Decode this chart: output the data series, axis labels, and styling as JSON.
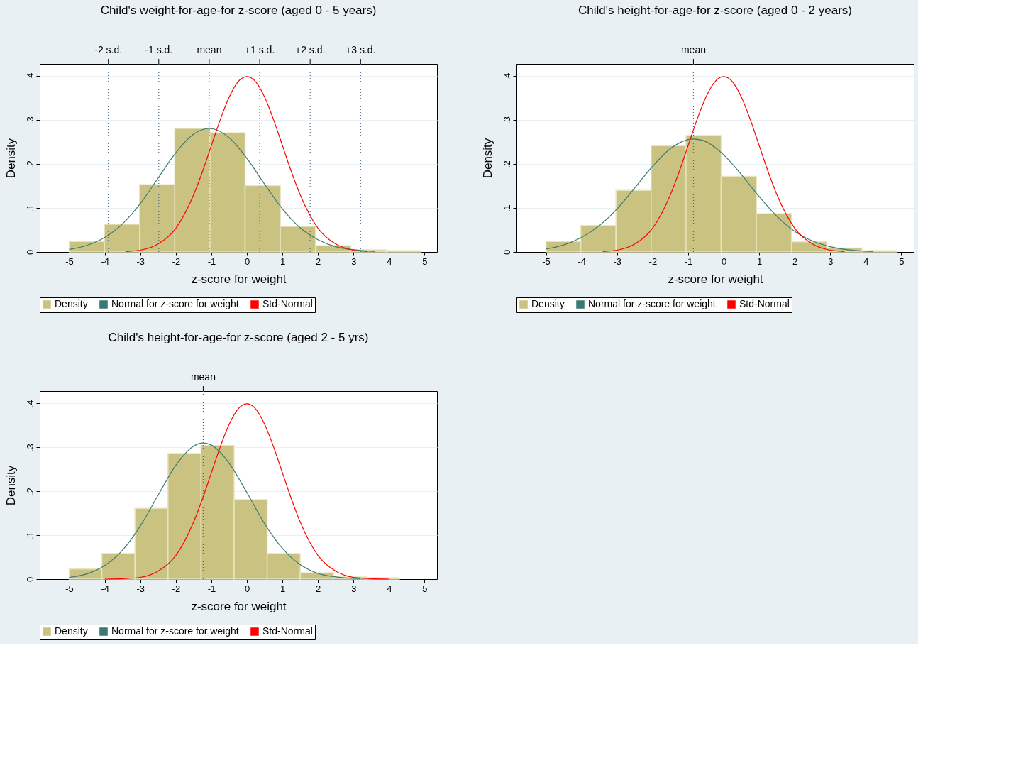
{
  "chart_data": [
    {
      "type": "histogram",
      "title": "Child's weight-for-age-for z-score (aged 0 - 5 years)",
      "xlabel": "z-score for weight",
      "ylabel": "Density",
      "xlim": [
        -5.83,
        5.35
      ],
      "ylim": [
        0,
        0.428
      ],
      "xticks": [
        -5,
        -4,
        -3,
        -2,
        -1,
        0,
        1,
        2,
        3,
        4,
        5
      ],
      "yticks": [
        {
          "value": 0,
          "label": "0"
        },
        {
          "value": 0.1,
          "label": ".1"
        },
        {
          "value": 0.2,
          "label": ".2"
        },
        {
          "value": 0.3,
          "label": ".3"
        },
        {
          "value": 0.4,
          "label": ".4"
        }
      ],
      "grid": "y",
      "legend": "bottom",
      "series": [
        {
          "name": "Density",
          "type": "histogram",
          "color": "#c9c280",
          "bins": [
            -5,
            -4.01,
            -3.02,
            -2.03,
            -1.04,
            -0.05,
            0.94,
            1.93,
            2.92,
            3.91,
            4.9
          ],
          "values": [
            0.024,
            0.063,
            0.153,
            0.281,
            0.271,
            0.151,
            0.058,
            0.014,
            0.005,
            0.003
          ]
        },
        {
          "name": "Normal for z-score for weight",
          "type": "line",
          "color": "#3b7a73",
          "x": [
            -5,
            -4.5,
            -4,
            -3.5,
            -3,
            -2.5,
            -2,
            -1.5,
            -1.06,
            -0.5,
            0,
            0.5,
            1,
            1.5,
            2,
            2.5,
            3,
            3.6
          ],
          "values": [
            0.006,
            0.015,
            0.033,
            0.064,
            0.11,
            0.168,
            0.226,
            0.268,
            0.281,
            0.26,
            0.213,
            0.154,
            0.098,
            0.055,
            0.028,
            0.012,
            0.005,
            0.001
          ]
        },
        {
          "name": "Std-Normal",
          "type": "line",
          "color": "#ff0000",
          "x": [
            -3.4,
            -3,
            -2.5,
            -2,
            -1.5,
            -1.25,
            -1,
            -0.75,
            -0.5,
            -0.25,
            0,
            0.25,
            0.5,
            0.75,
            1,
            1.25,
            1.5,
            2,
            2.5,
            3,
            3.4
          ],
          "values": [
            0.001,
            0.004,
            0.018,
            0.054,
            0.13,
            0.183,
            0.242,
            0.301,
            0.352,
            0.387,
            0.399,
            0.387,
            0.352,
            0.301,
            0.242,
            0.183,
            0.13,
            0.054,
            0.018,
            0.004,
            0.001
          ]
        }
      ],
      "ref_lines": [
        {
          "axis": "x",
          "value": -3.9,
          "label": "-2 s.d.",
          "line_style": "dotted"
        },
        {
          "axis": "x",
          "value": -2.48,
          "label": "-1 s.d.",
          "line_style": "dotted"
        },
        {
          "axis": "x",
          "value": -1.06,
          "label": "mean",
          "line_style": "dotted"
        },
        {
          "axis": "x",
          "value": 0.36,
          "label": "+1 s.d.",
          "line_style": "dotted"
        },
        {
          "axis": "x",
          "value": 1.78,
          "label": "+2 s.d.",
          "line_style": "dotted"
        },
        {
          "axis": "x",
          "value": 3.2,
          "label": "+3 s.d.",
          "line_style": "dotted"
        }
      ]
    },
    {
      "type": "histogram",
      "title": "Child's height-for-age-for z-score (aged 0 - 2 years)",
      "xlabel": "z-score for weight",
      "ylabel": "Density",
      "xlim": [
        -5.83,
        5.35
      ],
      "ylim": [
        0,
        0.428
      ],
      "xticks": [
        -5,
        -4,
        -3,
        -2,
        -1,
        0,
        1,
        2,
        3,
        4,
        5
      ],
      "yticks": [
        {
          "value": 0,
          "label": "0"
        },
        {
          "value": 0.1,
          "label": ".1"
        },
        {
          "value": 0.2,
          "label": ".2"
        },
        {
          "value": 0.3,
          "label": ".3"
        },
        {
          "value": 0.4,
          "label": ".4"
        }
      ],
      "grid": "y",
      "legend": "bottom",
      "series": [
        {
          "name": "Density",
          "type": "histogram",
          "color": "#c9c280",
          "bins": [
            -5,
            -4.02,
            -3.03,
            -2.04,
            -1.06,
            -0.07,
            0.92,
            1.91,
            2.9,
            3.89,
            4.88
          ],
          "values": [
            0.024,
            0.06,
            0.14,
            0.242,
            0.265,
            0.172,
            0.087,
            0.023,
            0.009,
            0.003
          ]
        },
        {
          "name": "Normal for z-score for weight",
          "type": "line",
          "color": "#3b7a73",
          "x": [
            -5,
            -4.5,
            -4,
            -3.5,
            -3,
            -2.5,
            -2,
            -1.5,
            -0.85,
            -0.5,
            0,
            0.5,
            1,
            1.5,
            2,
            2.5,
            3,
            3.5,
            4.2
          ],
          "values": [
            0.007,
            0.016,
            0.033,
            0.06,
            0.098,
            0.146,
            0.195,
            0.235,
            0.257,
            0.251,
            0.221,
            0.176,
            0.126,
            0.081,
            0.047,
            0.025,
            0.012,
            0.005,
            0.001
          ]
        },
        {
          "name": "Std-Normal",
          "type": "line",
          "color": "#ff0000",
          "x": [
            -3.4,
            -3,
            -2.5,
            -2,
            -1.5,
            -1.25,
            -1,
            -0.75,
            -0.5,
            -0.25,
            0,
            0.25,
            0.5,
            0.75,
            1,
            1.25,
            1.5,
            2,
            2.5,
            3,
            3.4
          ],
          "values": [
            0.001,
            0.004,
            0.018,
            0.054,
            0.13,
            0.183,
            0.242,
            0.301,
            0.352,
            0.387,
            0.399,
            0.387,
            0.352,
            0.301,
            0.242,
            0.183,
            0.13,
            0.054,
            0.018,
            0.004,
            0.001
          ]
        }
      ],
      "ref_lines": [
        {
          "axis": "x",
          "value": -0.85,
          "label": "mean",
          "line_style": "dotted"
        }
      ]
    },
    {
      "type": "histogram",
      "title": "Child's height-for-age-for z-score (aged 2 - 5 yrs)",
      "xlabel": "z-score for weight",
      "ylabel": "Density",
      "xlim": [
        -5.83,
        5.35
      ],
      "ylim": [
        0,
        0.428
      ],
      "xticks": [
        -5,
        -4,
        -3,
        -2,
        -1,
        0,
        1,
        2,
        3,
        4,
        5
      ],
      "yticks": [
        {
          "value": 0,
          "label": "0"
        },
        {
          "value": 0.1,
          "label": ".1"
        },
        {
          "value": 0.2,
          "label": ".2"
        },
        {
          "value": 0.3,
          "label": ".3"
        },
        {
          "value": 0.4,
          "label": ".4"
        }
      ],
      "grid": "y",
      "legend": "bottom",
      "series": [
        {
          "name": "Density",
          "type": "histogram",
          "color": "#c9c280",
          "bins": [
            -5,
            -4.08,
            -3.15,
            -2.22,
            -1.29,
            -0.36,
            0.57,
            1.5,
            2.43,
            3.36,
            4.29
          ],
          "values": [
            0.023,
            0.058,
            0.161,
            0.286,
            0.304,
            0.181,
            0.058,
            0.014,
            0.005,
            0.003
          ]
        },
        {
          "name": "Normal for z-score for weight",
          "type": "line",
          "color": "#3b7a73",
          "x": [
            -5,
            -4.5,
            -4,
            -3.5,
            -3,
            -2.5,
            -2,
            -1.5,
            -1.23,
            -1,
            -0.5,
            0,
            0.5,
            1,
            1.5,
            2,
            2.5,
            3.2
          ],
          "values": [
            0.004,
            0.012,
            0.031,
            0.066,
            0.121,
            0.191,
            0.259,
            0.303,
            0.31,
            0.305,
            0.264,
            0.197,
            0.126,
            0.07,
            0.033,
            0.013,
            0.005,
            0.001
          ]
        },
        {
          "name": "Std-Normal",
          "type": "line",
          "color": "#ff0000",
          "x": [
            -4,
            -3.5,
            -3,
            -2.5,
            -2,
            -1.5,
            -1.25,
            -1,
            -0.75,
            -0.5,
            -0.25,
            0,
            0.25,
            0.5,
            0.75,
            1,
            1.25,
            1.5,
            2,
            2.5,
            3,
            3.5,
            4
          ],
          "values": [
            0.0,
            0.001,
            0.004,
            0.018,
            0.054,
            0.13,
            0.183,
            0.242,
            0.301,
            0.352,
            0.387,
            0.399,
            0.387,
            0.352,
            0.301,
            0.242,
            0.183,
            0.13,
            0.054,
            0.018,
            0.004,
            0.001,
            0.0
          ]
        }
      ],
      "ref_lines": [
        {
          "axis": "x",
          "value": -1.23,
          "label": "mean",
          "line_style": "dotted"
        }
      ]
    }
  ]
}
